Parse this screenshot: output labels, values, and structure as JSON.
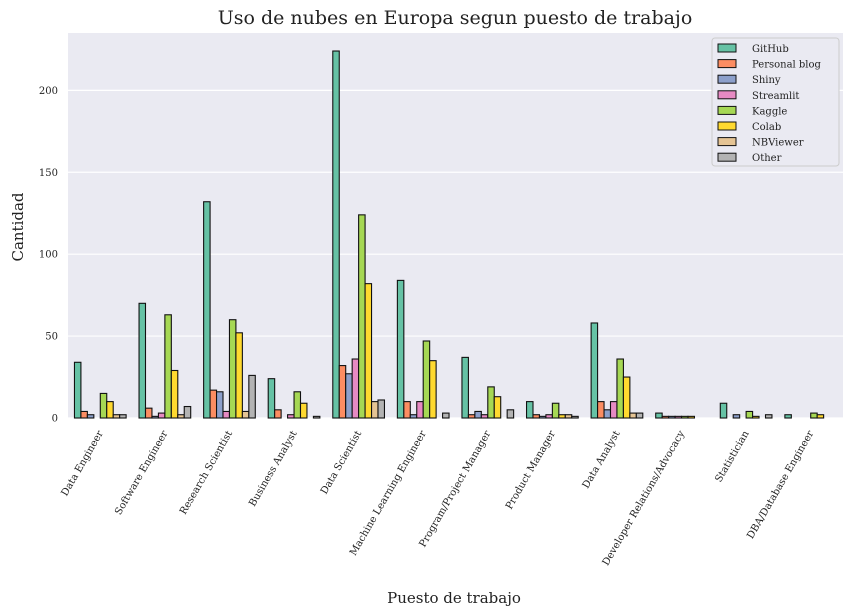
{
  "chart_data": {
    "type": "bar",
    "title": "Uso de nubes en Europa segun puesto de trabajo",
    "xlabel": "Puesto de trabajo",
    "ylabel": "Cantidad",
    "ylim": [
      0,
      235
    ],
    "yticks": [
      0,
      50,
      100,
      150,
      200
    ],
    "grid": true,
    "legend_position": "top-right",
    "categories": [
      "Data Engineer",
      "Software Engineer",
      "Research Scientist",
      "Business Analyst",
      "Data Scientist",
      "Machine Learning Engineer",
      "Program/Project Manager",
      "Product Manager",
      "Data Analyst",
      "Developer Relations/Advocacy",
      "Statistician",
      "DBA/Database Engineer"
    ],
    "series": [
      {
        "name": "GitHub",
        "color": "#66c2a5",
        "values": [
          34,
          70,
          132,
          24,
          224,
          84,
          37,
          10,
          58,
          3,
          9,
          2
        ]
      },
      {
        "name": "Personal blog",
        "color": "#fc8d62",
        "values": [
          4,
          6,
          17,
          5,
          32,
          10,
          2,
          2,
          10,
          1,
          0,
          0
        ]
      },
      {
        "name": "Shiny",
        "color": "#8da0cb",
        "values": [
          2,
          1,
          16,
          0,
          27,
          2,
          4,
          1,
          5,
          1,
          2,
          0
        ]
      },
      {
        "name": "Streamlit",
        "color": "#e78ac3",
        "values": [
          0,
          3,
          4,
          2,
          36,
          10,
          2,
          2,
          10,
          1,
          0,
          0
        ]
      },
      {
        "name": "Kaggle",
        "color": "#a6d854",
        "values": [
          15,
          63,
          60,
          16,
          124,
          47,
          19,
          9,
          36,
          1,
          4,
          3
        ]
      },
      {
        "name": "Colab",
        "color": "#ffd92f",
        "values": [
          10,
          29,
          52,
          9,
          82,
          35,
          13,
          2,
          25,
          1,
          1,
          2
        ]
      },
      {
        "name": "NBViewer",
        "color": "#e5c494",
        "values": [
          2,
          2,
          4,
          0,
          10,
          0,
          0,
          2,
          3,
          0,
          0,
          0
        ]
      },
      {
        "name": "Other",
        "color": "#b3b3b3",
        "values": [
          2,
          7,
          26,
          1,
          11,
          3,
          5,
          1,
          3,
          0,
          2,
          0
        ]
      }
    ]
  }
}
